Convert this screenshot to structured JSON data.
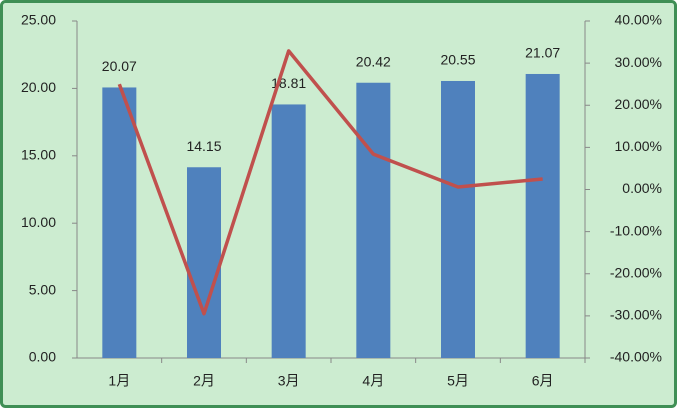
{
  "chart_data": {
    "type": "bar-line",
    "categories": [
      "1月",
      "2月",
      "3月",
      "4月",
      "5月",
      "6月"
    ],
    "series": [
      {
        "type": "bar",
        "color": "#4f81bd",
        "values": [
          20.07,
          14.15,
          18.81,
          20.42,
          20.55,
          21.07
        ]
      },
      {
        "type": "line",
        "axis": "y2",
        "color": "#c0504d",
        "values": [
          25,
          -29.5,
          32.9,
          8.4,
          0.6,
          2.5
        ]
      }
    ],
    "ylim": [
      0,
      25
    ],
    "yticks": [
      {
        "value": 0,
        "label": "0.00"
      },
      {
        "value": 5,
        "label": "5.00"
      },
      {
        "value": 10,
        "label": "10.00"
      },
      {
        "value": 15,
        "label": "15.00"
      },
      {
        "value": 20,
        "label": "20.00"
      },
      {
        "value": 25,
        "label": "25.00"
      }
    ],
    "y2lim": [
      -40,
      40
    ],
    "y2ticks": [
      {
        "value": -40,
        "label": "-40.00%"
      },
      {
        "value": -30,
        "label": "-30.00%"
      },
      {
        "value": -20,
        "label": "-20.00%"
      },
      {
        "value": -10,
        "label": "-10.00%"
      },
      {
        "value": 0,
        "label": "0.00%"
      },
      {
        "value": 10,
        "label": "10.00%"
      },
      {
        "value": 20,
        "label": "20.00%"
      },
      {
        "value": 30,
        "label": "30.00%"
      },
      {
        "value": 40,
        "label": "40.00%"
      }
    ],
    "grid": false
  }
}
